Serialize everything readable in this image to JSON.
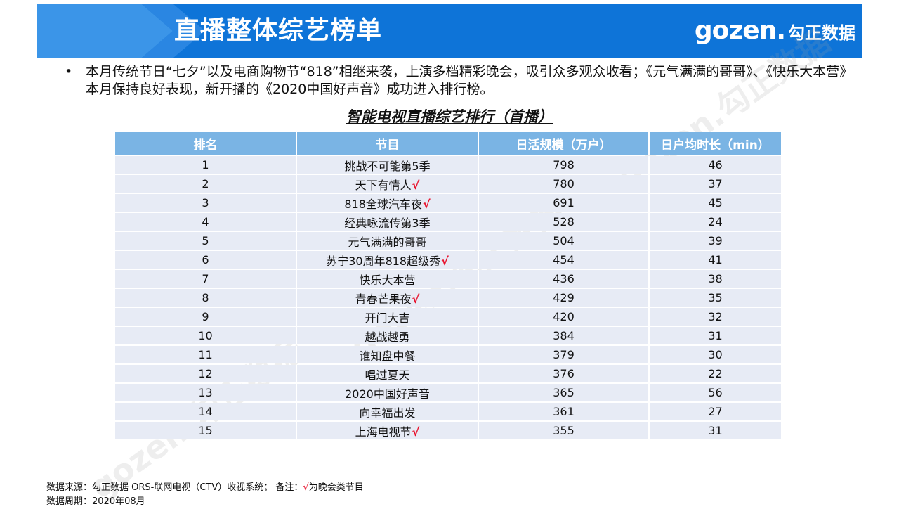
{
  "header": {
    "title": "直播整体综艺榜单",
    "logo_latin": "gozen.",
    "logo_cn": "勾正数据",
    "colors": {
      "bar": "#0e74d8",
      "accent": "#3b95e8"
    }
  },
  "summary": {
    "bullet": "•",
    "text": "本月传统节日“七夕”以及电商购物节“818”相继来袭，上演多档精彩晚会，吸引众多观众收看；《元气满满的哥哥》、《快乐大本营》本月保持良好表现，新开播的《2020中国好声音》成功进入排行榜。"
  },
  "table": {
    "title": "智能电视直播综艺排行（首播）",
    "columns": [
      "排名",
      "节目",
      "日活规模（万户）",
      "日户均时长（min）"
    ],
    "check_mark": "√",
    "rows": [
      {
        "rank": "1",
        "program": "挑战不可能第5季",
        "gala": false,
        "dau": "798",
        "duration": "46"
      },
      {
        "rank": "2",
        "program": "天下有情人",
        "gala": true,
        "dau": "780",
        "duration": "37"
      },
      {
        "rank": "3",
        "program": "818全球汽车夜",
        "gala": true,
        "dau": "691",
        "duration": "45"
      },
      {
        "rank": "4",
        "program": "经典咏流传第3季",
        "gala": false,
        "dau": "528",
        "duration": "24"
      },
      {
        "rank": "5",
        "program": "元气满满的哥哥",
        "gala": false,
        "dau": "504",
        "duration": "39"
      },
      {
        "rank": "6",
        "program": "苏宁30周年818超级秀",
        "gala": true,
        "dau": "454",
        "duration": "41"
      },
      {
        "rank": "7",
        "program": "快乐大本营",
        "gala": false,
        "dau": "436",
        "duration": "38"
      },
      {
        "rank": "8",
        "program": "青春芒果夜",
        "gala": true,
        "dau": "429",
        "duration": "35"
      },
      {
        "rank": "9",
        "program": "开门大吉",
        "gala": false,
        "dau": "420",
        "duration": "32"
      },
      {
        "rank": "10",
        "program": "越战越勇",
        "gala": false,
        "dau": "384",
        "duration": "31"
      },
      {
        "rank": "11",
        "program": "谁知盘中餐",
        "gala": false,
        "dau": "379",
        "duration": "30"
      },
      {
        "rank": "12",
        "program": "唱过夏天",
        "gala": false,
        "dau": "376",
        "duration": "22"
      },
      {
        "rank": "13",
        "program": "2020中国好声音",
        "gala": false,
        "dau": "365",
        "duration": "56"
      },
      {
        "rank": "14",
        "program": "向幸福出发",
        "gala": false,
        "dau": "361",
        "duration": "27"
      },
      {
        "rank": "15",
        "program": "上海电视节",
        "gala": true,
        "dau": "355",
        "duration": "31"
      }
    ]
  },
  "footer": {
    "source_prefix": "数据来源：勾正数据 ORS-联网电视（CTV）收视系统；  备注：",
    "source_check": "√",
    "source_suffix": "为晚会类节目",
    "period": "数据周期：2020年08月"
  },
  "watermarks": [
    "gozen.勾正数据",
    "gozen.勾正数据",
    "gozen.勾正数据"
  ]
}
